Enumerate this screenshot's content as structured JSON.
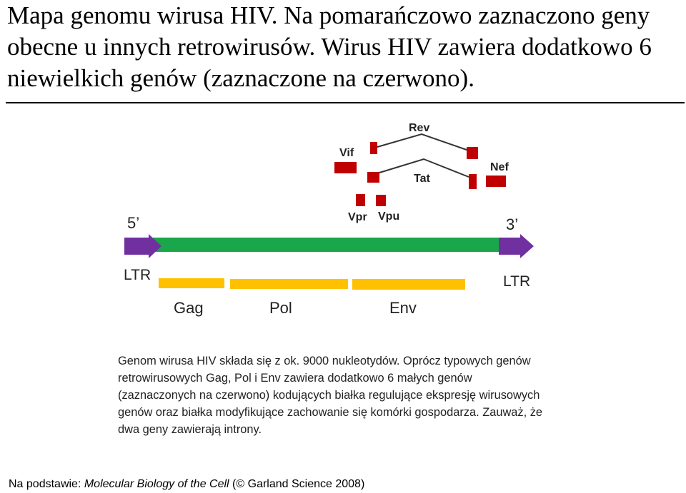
{
  "title": "Mapa genomu wirusa HIV. Na pomarańczowo zaznaczono geny obecne u innych retrowirusów. Wirus HIV zawiera dodatkowo 6 niewielkich genów (zaznaczone na czerwono).",
  "diagram": {
    "end_5": "5’",
    "end_3": "3’",
    "ltr_left": "LTR",
    "ltr_right": "LTR",
    "genes_main": [
      "Gag",
      "Pol",
      "Env"
    ],
    "genes_small": {
      "rev": "Rev",
      "vif": "Vif",
      "tat": "Tat",
      "nef": "Nef",
      "vpr": "Vpr",
      "vpu": "Vpu"
    },
    "colors": {
      "genome": "#1aa64a",
      "ltr": "#7030a0",
      "main_genes": "#ffc000",
      "small_genes": "#c00000"
    }
  },
  "caption": "Genom wirusa HIV składa się z ok. 9000 nukleotydów. Oprócz typowych genów retrowirusowych Gag, Pol i Env zawiera dodatkowo 6 małych genów (zaznaczonych na czerwono) kodujących białka regulujące ekspresję wirusowych genów oraz białka modyfikujące zachowanie się komórki gospodarza. Zauważ, że dwa geny zawierają introny.",
  "footnote": {
    "prefix": "Na podstawie: ",
    "source": "Molecular Biology of the Cell",
    "suffix": " (© Garland Science 2008)"
  }
}
